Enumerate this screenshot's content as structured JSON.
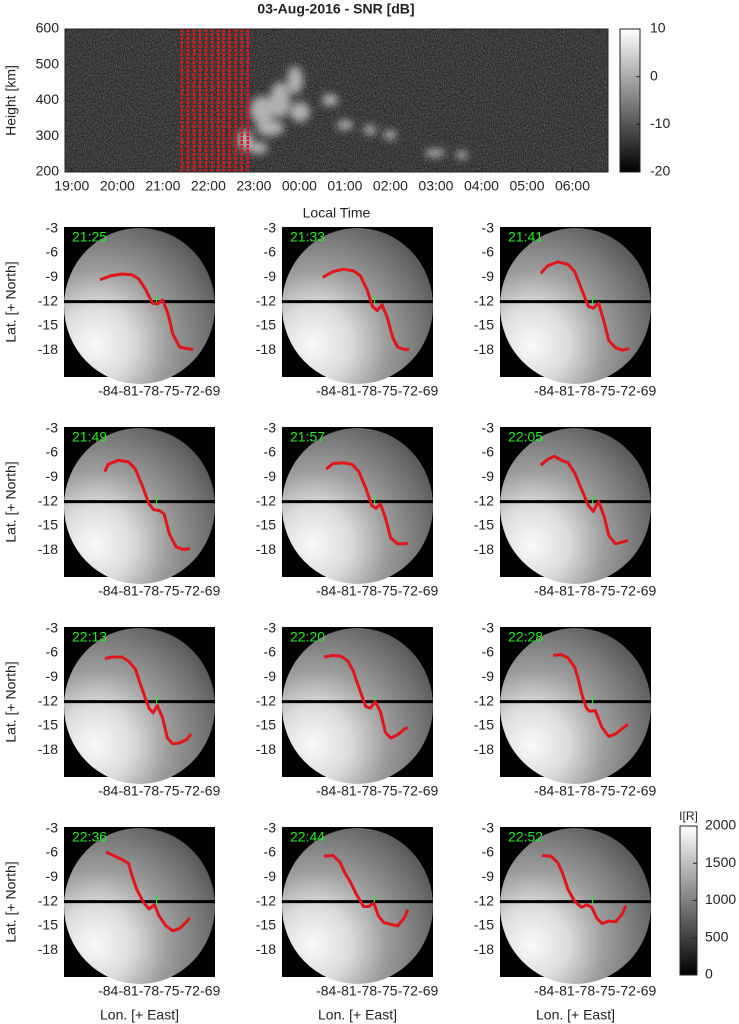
{
  "chart_data": [
    {
      "type": "heatmap",
      "title": "03-Aug-2016 - SNR [dB]",
      "ylabel": "Height [km]",
      "xlabel": "Local Time",
      "xlim": [
        18.85,
        30.78
      ],
      "ylim": [
        200,
        600
      ],
      "xticks": [
        {
          "value": 19,
          "label": "19:00"
        },
        {
          "value": 20,
          "label": "20:00"
        },
        {
          "value": 21,
          "label": "21:00"
        },
        {
          "value": 22,
          "label": "22:00"
        },
        {
          "value": 23,
          "label": "23:00"
        },
        {
          "value": 24,
          "label": "00:00"
        },
        {
          "value": 25,
          "label": "01:00"
        },
        {
          "value": 26,
          "label": "02:00"
        },
        {
          "value": 27,
          "label": "03:00"
        },
        {
          "value": 28,
          "label": "04:00"
        },
        {
          "value": 29,
          "label": "05:00"
        },
        {
          "value": 30,
          "label": "06:00"
        }
      ],
      "yticks": [
        200,
        300,
        400,
        500,
        600
      ],
      "colorbar": {
        "lim": [
          -20,
          10
        ],
        "ticks": [
          -20,
          -10,
          0,
          10
        ]
      },
      "marker_color": "#e0161b"
    },
    {
      "type": "image",
      "xlabel": "Lon. [+ East]",
      "ylabel": "Lat. [+ North]",
      "xlim": [
        -90.5,
        -68.3
      ],
      "ylim": [
        -2.8,
        -21.3
      ],
      "xticks": [
        -84,
        -81,
        -78,
        -75,
        -72,
        -69
      ],
      "yticks": [
        -3,
        -6,
        -9,
        -12,
        -15,
        -18
      ],
      "reference_lat": -12,
      "station": {
        "lon": -76.9,
        "lat": -11.9
      },
      "curve_color": "#e0161b",
      "label_color": "#22ee22",
      "colorbar": {
        "label": "I[R]",
        "lim": [
          0,
          2000
        ],
        "ticks": [
          0,
          500,
          1000,
          1500,
          2000
        ]
      },
      "panels": [
        {
          "time": "21:25",
          "lon": [
            -85.2,
            -83.5,
            -82,
            -80.5,
            -79.5,
            -78.5,
            -77.5,
            -76.8,
            -76,
            -75.2,
            -74.5,
            -73.5,
            -72.5,
            -71.5
          ],
          "lat": [
            -9.3,
            -8.8,
            -8.6,
            -8.7,
            -9.2,
            -10.5,
            -12.2,
            -12.3,
            -11.8,
            -13.5,
            -16,
            -17.6,
            -17.8,
            -17.9
          ]
        },
        {
          "time": "21:33",
          "lon": [
            -84.5,
            -83,
            -81.5,
            -80,
            -79,
            -78,
            -77.2,
            -76.5,
            -75.8,
            -75,
            -74.2,
            -73.5,
            -72.5,
            -71.8
          ],
          "lat": [
            -9,
            -8.3,
            -8,
            -8.2,
            -8.8,
            -10.5,
            -12.6,
            -13.1,
            -12.4,
            -14,
            -16.5,
            -17.6,
            -17.9,
            -17.9
          ]
        },
        {
          "time": "21:41",
          "lon": [
            -84.5,
            -83.5,
            -82,
            -80.5,
            -79.5,
            -78.5,
            -77.5,
            -76.8,
            -76,
            -75.3,
            -74.5,
            -73.5,
            -72.5,
            -71.5
          ],
          "lat": [
            -8.5,
            -7.6,
            -7.1,
            -7.4,
            -8.3,
            -10.5,
            -12.6,
            -12.8,
            -12.2,
            -14.2,
            -16.8,
            -17.7,
            -18,
            -17.8
          ]
        },
        {
          "time": "21:49",
          "lon": [
            -84.5,
            -84,
            -82.5,
            -81,
            -80,
            -79,
            -78,
            -77.3,
            -76.5,
            -75.8,
            -75,
            -74,
            -73,
            -72
          ],
          "lat": [
            -8.3,
            -7.4,
            -6.9,
            -7.1,
            -8,
            -10,
            -12.3,
            -13,
            -13.1,
            -13.5,
            -16,
            -17.6,
            -17.9,
            -17.8
          ]
        },
        {
          "time": "21:57",
          "lon": [
            -84,
            -83,
            -81.5,
            -80.2,
            -79.2,
            -78.2,
            -77.3,
            -76.7,
            -76,
            -75.3,
            -74.5,
            -73.5,
            -72.5,
            -72
          ],
          "lat": [
            -8,
            -7.3,
            -7.2,
            -7.4,
            -8.3,
            -10.3,
            -12.5,
            -12.8,
            -12.3,
            -14,
            -16.5,
            -17.2,
            -17.2,
            -17.1
          ]
        },
        {
          "time": "22:05",
          "lon": [
            -84.5,
            -83.5,
            -82.5,
            -81.5,
            -80.5,
            -79.5,
            -78.5,
            -77.5,
            -76.8,
            -76,
            -75.2,
            -74.5,
            -73.5,
            -72.5,
            -71.7
          ],
          "lat": [
            -7.5,
            -6.8,
            -6.4,
            -6.9,
            -7.2,
            -8.5,
            -10.5,
            -12.5,
            -13.2,
            -12,
            -13.8,
            -16.2,
            -17.2,
            -17,
            -16.8
          ]
        },
        {
          "time": "22:13",
          "lon": [
            -84.5,
            -83.5,
            -82,
            -81,
            -80,
            -79,
            -78,
            -77.4,
            -76.8,
            -76,
            -75.3,
            -74.5,
            -73.5,
            -72.5,
            -71.8
          ],
          "lat": [
            -6.7,
            -6.5,
            -6.5,
            -7,
            -8,
            -10.5,
            -12.8,
            -13.4,
            -12.5,
            -14,
            -16.5,
            -17.2,
            -17.1,
            -16.7,
            -16
          ]
        },
        {
          "time": "22:20",
          "lon": [
            -84.3,
            -83,
            -81.8,
            -80.8,
            -80,
            -79,
            -78.2,
            -77.5,
            -76.8,
            -76,
            -75.3,
            -74.5,
            -73.5,
            -72.5,
            -72
          ],
          "lat": [
            -6.5,
            -6.3,
            -6.4,
            -7,
            -8.3,
            -10.7,
            -12.6,
            -12.8,
            -12,
            -13.3,
            -15.8,
            -16.5,
            -16.1,
            -15.4,
            -15.2
          ]
        },
        {
          "time": "22:28",
          "lon": [
            -82.7,
            -81.5,
            -80.5,
            -79.5,
            -79,
            -78.5,
            -77.8,
            -77.3,
            -76.5,
            -75.5,
            -74.5,
            -73.5,
            -72.5,
            -71.7
          ],
          "lat": [
            -6.3,
            -6.2,
            -6.6,
            -7.8,
            -9.2,
            -11,
            -12.8,
            -13.2,
            -13.1,
            -15.2,
            -16.3,
            -16,
            -15.3,
            -14.8
          ]
        },
        {
          "time": "22:36",
          "lon": [
            -84.3,
            -83,
            -82,
            -81,
            -80.5,
            -79.8,
            -78.8,
            -78,
            -77.2,
            -76.5,
            -75.5,
            -74.5,
            -73.5,
            -72.5,
            -72
          ],
          "lat": [
            -5.9,
            -6.4,
            -6.8,
            -7.3,
            -8.8,
            -10.5,
            -12.1,
            -12.9,
            -12.4,
            -13.8,
            -15,
            -15.6,
            -15.3,
            -14.5,
            -14
          ]
        },
        {
          "time": "22:44",
          "lon": [
            -84.3,
            -83,
            -82,
            -81.3,
            -80.5,
            -79.5,
            -78.5,
            -77.8,
            -77,
            -76.3,
            -75.5,
            -74.5,
            -73.5,
            -72.5,
            -72
          ],
          "lat": [
            -6.4,
            -6.3,
            -7.1,
            -8.4,
            -9.5,
            -11.2,
            -12.6,
            -12.6,
            -12.2,
            -13.8,
            -14.6,
            -14.8,
            -15,
            -14,
            -13
          ]
        },
        {
          "time": "22:52",
          "lon": [
            -84.3,
            -83,
            -82,
            -81.3,
            -80.5,
            -79.5,
            -78.5,
            -77.8,
            -77,
            -76.3,
            -75.5,
            -74.5,
            -73.5,
            -72.5,
            -72
          ],
          "lat": [
            -6.3,
            -6.4,
            -7.2,
            -8.5,
            -10.5,
            -12,
            -12.7,
            -12.4,
            -12.7,
            -14,
            -14.7,
            -14.4,
            -14.5,
            -13.5,
            -12.5
          ]
        }
      ]
    }
  ]
}
